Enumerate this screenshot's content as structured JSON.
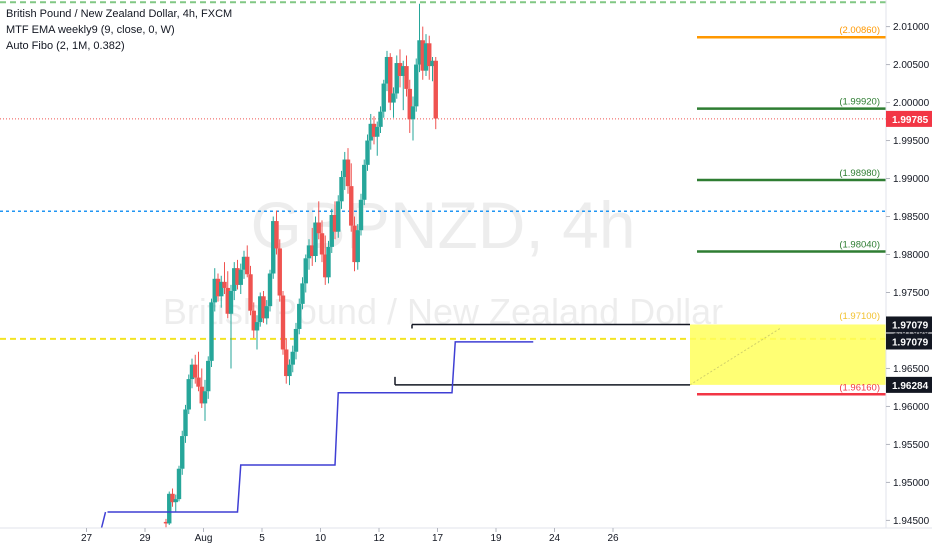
{
  "legend": {
    "line1": "British Pound / New Zealand Dollar, 4h, FXCM",
    "line2": "MTF EMA weekly9 (9, close, 0, W)",
    "line3": "Auto Fibo (2, 1M, 0.382)"
  },
  "watermark": {
    "symbol": "GBPNZD, 4h",
    "name": "British Pound / New Zealand Dollar"
  },
  "colors": {
    "up": "#26a69a",
    "down": "#ef5350",
    "ema": "#3f3fd4",
    "fib_top": "#ff9800",
    "fib_mid": "#2e7d32",
    "fib_bottom": "#f23645",
    "zone": "#ffff5c",
    "dash_yellow": "#f2e424",
    "dash_blue": "#2196f3",
    "dash_green": "#81c784",
    "price_line": "#ef5350"
  },
  "chart_data": {
    "type": "candlestick",
    "y_range": [
      1.944,
      2.0135
    ],
    "y_axis_ticks": [
      "2.01000",
      "2.00500",
      "2.00000",
      "1.99500",
      "1.99000",
      "1.98500",
      "1.98000",
      "1.97500",
      "1.97000",
      "1.96500",
      "1.96000",
      "1.95500",
      "1.95000",
      "1.94500"
    ],
    "x_axis_ticks": [
      {
        "label": "27",
        "slot": -18
      },
      {
        "label": "29",
        "slot": 0
      },
      {
        "label": "Aug",
        "slot": 18
      },
      {
        "label": "5",
        "slot": 36
      },
      {
        "label": "10",
        "slot": 54
      },
      {
        "label": "12",
        "slot": 72
      },
      {
        "label": "17",
        "slot": 90
      },
      {
        "label": "19",
        "slot": 108
      },
      {
        "label": "24",
        "slot": 126
      },
      {
        "label": "26",
        "slot": 144
      }
    ],
    "last_price": {
      "value": 1.99785,
      "label": "1.99785"
    },
    "fib_levels": [
      {
        "value": 2.0086,
        "label": "(2.00860)",
        "role": "top"
      },
      {
        "value": 1.9992,
        "label": "(1.99920)",
        "role": "mid"
      },
      {
        "value": 1.9898,
        "label": "(1.98980)",
        "role": "mid"
      },
      {
        "value": 1.9804,
        "label": "(1.98040)",
        "role": "mid"
      },
      {
        "value": 1.971,
        "label": "(1.97100)",
        "role": "zone"
      },
      {
        "value": 1.9616,
        "label": "(1.96160)",
        "role": "bottom"
      }
    ],
    "zone": {
      "top": 1.97079,
      "bottom": 1.96284,
      "top_label": "1.97079",
      "mid_label": "1.97079",
      "bottom_label": "1.96284"
    },
    "dashed_levels": [
      {
        "value": 2.0132,
        "style": "green"
      },
      {
        "value": 1.9857,
        "style": "blue"
      },
      {
        "value": 1.9689,
        "style": "yellow"
      }
    ],
    "ema_steps": [
      {
        "slot_start": -18,
        "slot_end": 22,
        "value": 1.9461
      },
      {
        "slot_start": 23,
        "slot_end": 52,
        "value": 1.9523
      },
      {
        "slot_start": 53,
        "slot_end": 88,
        "value": 1.9618
      },
      {
        "slot_start": 89,
        "slot_end": 113,
        "value": 1.9685
      }
    ],
    "candles": [
      [
        1.9448,
        1.9452,
        1.9441,
        1.9446
      ],
      [
        1.9446,
        1.9488,
        1.9444,
        1.9485
      ],
      [
        1.9485,
        1.9492,
        1.9468,
        1.9474
      ],
      [
        1.9474,
        1.9484,
        1.9461,
        1.9478
      ],
      [
        1.9478,
        1.9522,
        1.9475,
        1.9518
      ],
      [
        1.9518,
        1.9568,
        1.951,
        1.9561
      ],
      [
        1.9561,
        1.9602,
        1.9552,
        1.9596
      ],
      [
        1.9596,
        1.9642,
        1.959,
        1.9636
      ],
      [
        1.9636,
        1.9663,
        1.9624,
        1.9655
      ],
      [
        1.9655,
        1.9668,
        1.963,
        1.9638
      ],
      [
        1.9638,
        1.9672,
        1.962,
        1.9626
      ],
      [
        1.9626,
        1.965,
        1.9598,
        1.9604
      ],
      [
        1.9604,
        1.9635,
        1.9581,
        1.962
      ],
      [
        1.962,
        1.9666,
        1.961,
        1.966
      ],
      [
        1.966,
        1.9742,
        1.9652,
        1.9737
      ],
      [
        1.9737,
        1.9782,
        1.9725,
        1.9768
      ],
      [
        1.9768,
        1.9775,
        1.9738,
        1.9745
      ],
      [
        1.9745,
        1.9772,
        1.973,
        1.9764
      ],
      [
        1.9764,
        1.979,
        1.9748,
        1.9756
      ],
      [
        1.9756,
        1.9778,
        1.9716,
        1.9722
      ],
      [
        1.9722,
        1.976,
        1.965,
        1.9752
      ],
      [
        1.9752,
        1.979,
        1.974,
        1.9782
      ],
      [
        1.9782,
        1.9793,
        1.9754,
        1.976
      ],
      [
        1.976,
        1.9788,
        1.9748,
        1.978
      ],
      [
        1.978,
        1.9805,
        1.9768,
        1.9797
      ],
      [
        1.9797,
        1.9812,
        1.977,
        1.9774
      ],
      [
        1.9774,
        1.9785,
        1.972,
        1.9726
      ],
      [
        1.9726,
        1.9737,
        1.969,
        1.97
      ],
      [
        1.97,
        1.972,
        1.9675,
        1.9711
      ],
      [
        1.9711,
        1.975,
        1.9705,
        1.9745
      ],
      [
        1.9745,
        1.9752,
        1.971,
        1.9716
      ],
      [
        1.9716,
        1.974,
        1.9708,
        1.9732
      ],
      [
        1.9732,
        1.978,
        1.9725,
        1.9775
      ],
      [
        1.9775,
        1.985,
        1.9768,
        1.9844
      ],
      [
        1.9844,
        1.9858,
        1.98,
        1.9808
      ],
      [
        1.9808,
        1.982,
        1.9738,
        1.9746
      ],
      [
        1.9746,
        1.9752,
        1.9668,
        1.9675
      ],
      [
        1.9675,
        1.969,
        1.963,
        1.964
      ],
      [
        1.964,
        1.9662,
        1.9628,
        1.9655
      ],
      [
        1.9655,
        1.968,
        1.9645,
        1.9672
      ],
      [
        1.9672,
        1.971,
        1.9662,
        1.9702
      ],
      [
        1.9702,
        1.9742,
        1.9695,
        1.9735
      ],
      [
        1.9735,
        1.977,
        1.9728,
        1.9762
      ],
      [
        1.9762,
        1.98,
        1.975,
        1.9795
      ],
      [
        1.9795,
        1.982,
        1.978,
        1.9812
      ],
      [
        1.9812,
        1.9835,
        1.9785,
        1.9798
      ],
      [
        1.9798,
        1.985,
        1.979,
        1.9842
      ],
      [
        1.9842,
        1.987,
        1.982,
        1.9828
      ],
      [
        1.9828,
        1.9845,
        1.979,
        1.98
      ],
      [
        1.98,
        1.9825,
        1.976,
        1.977
      ],
      [
        1.977,
        1.9818,
        1.9762,
        1.981
      ],
      [
        1.981,
        1.986,
        1.9802,
        1.9852
      ],
      [
        1.9852,
        1.987,
        1.982,
        1.983
      ],
      [
        1.983,
        1.9878,
        1.9822,
        1.987
      ],
      [
        1.987,
        1.991,
        1.986,
        1.9902
      ],
      [
        1.9902,
        1.9935,
        1.9885,
        1.9925
      ],
      [
        1.9925,
        1.994,
        1.988,
        1.989
      ],
      [
        1.989,
        1.992,
        1.983,
        1.9838
      ],
      [
        1.9838,
        1.985,
        1.9778,
        1.979
      ],
      [
        1.979,
        1.984,
        1.978,
        1.9832
      ],
      [
        1.9832,
        1.988,
        1.9825,
        1.9872
      ],
      [
        1.9872,
        1.9925,
        1.9865,
        1.9918
      ],
      [
        1.9918,
        1.9958,
        1.991,
        1.995
      ],
      [
        1.995,
        1.9985,
        1.9938,
        1.9972
      ],
      [
        1.9972,
        1.9982,
        1.9945,
        1.9955
      ],
      [
        1.9955,
        1.9975,
        1.993,
        1.9968
      ],
      [
        1.9968,
        1.9995,
        1.996,
        1.9988
      ],
      [
        1.9988,
        2.003,
        1.998,
        2.0025
      ],
      [
        2.0025,
        2.0068,
        2.0015,
        2.006
      ],
      [
        2.006,
        2.0065,
        1.999,
        2.0
      ],
      [
        2.0,
        2.002,
        1.998,
        2.0012
      ],
      [
        2.0012,
        2.0062,
        2.0005,
        2.0052
      ],
      [
        2.0052,
        2.007,
        2.002,
        2.0035
      ],
      [
        2.0035,
        2.0055,
        1.999,
        2.0048
      ],
      [
        2.0048,
        2.0062,
        2.0008,
        2.0018
      ],
      [
        2.0018,
        2.003,
        1.996,
        1.9978
      ],
      [
        1.9978,
        2.0008,
        1.995,
        1.9995
      ],
      [
        1.9995,
        2.0058,
        1.9988,
        2.005
      ],
      [
        2.005,
        2.013,
        2.004,
        2.0082
      ],
      [
        2.0082,
        2.01,
        2.003,
        2.0042
      ],
      [
        2.0042,
        2.009,
        2.0035,
        2.0078
      ],
      [
        2.0078,
        2.0088,
        2.003,
        2.0048
      ],
      [
        2.0048,
        2.006,
        2.0028,
        2.0055
      ],
      [
        2.0055,
        2.006,
        1.9965,
        1.9979
      ]
    ]
  }
}
